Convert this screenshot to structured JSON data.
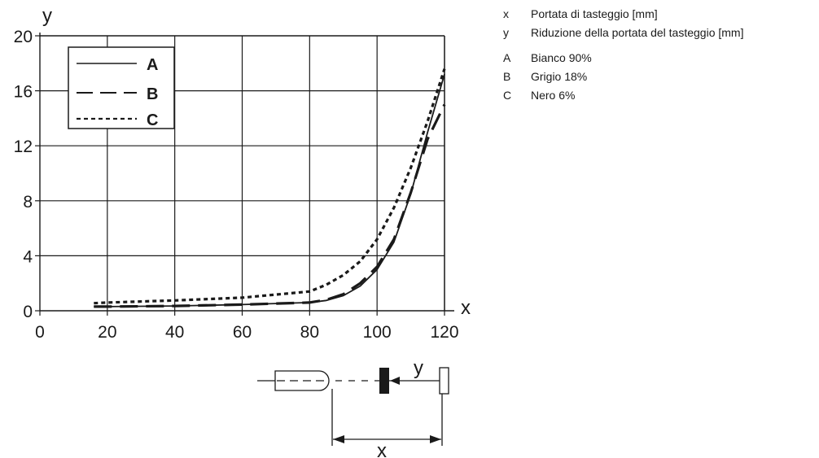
{
  "chart_data": {
    "type": "line",
    "xlabel": "x",
    "ylabel": "y",
    "xlim": [
      0,
      120
    ],
    "ylim": [
      0,
      20
    ],
    "x_ticks": [
      0,
      20,
      40,
      60,
      80,
      100,
      120
    ],
    "y_ticks": [
      0,
      4,
      8,
      12,
      16,
      20
    ],
    "grid": true,
    "legend_position": "top-left",
    "series": [
      {
        "name": "A",
        "line_style": "solid",
        "x": [
          16,
          20,
          40,
          60,
          80,
          85,
          90,
          95,
          100,
          105,
          110,
          115,
          120
        ],
        "y": [
          0.3,
          0.3,
          0.35,
          0.45,
          0.6,
          0.75,
          1.1,
          1.8,
          3.0,
          5.0,
          8.5,
          13.0,
          17.2
        ]
      },
      {
        "name": "B",
        "line_style": "dashed",
        "x": [
          16,
          20,
          40,
          60,
          80,
          85,
          90,
          95,
          100,
          105,
          110,
          115,
          120
        ],
        "y": [
          0.3,
          0.3,
          0.35,
          0.45,
          0.6,
          0.8,
          1.2,
          2.0,
          3.2,
          5.2,
          8.6,
          12.5,
          15.0
        ]
      },
      {
        "name": "C",
        "line_style": "dotted",
        "x": [
          16,
          20,
          40,
          60,
          80,
          85,
          90,
          95,
          100,
          105,
          110,
          115,
          120
        ],
        "y": [
          0.55,
          0.6,
          0.75,
          0.95,
          1.4,
          1.9,
          2.6,
          3.6,
          5.2,
          7.5,
          10.4,
          13.8,
          17.6
        ]
      }
    ]
  },
  "legend": {
    "entries": [
      {
        "label": "A",
        "style": "solid"
      },
      {
        "label": "B",
        "style": "dashed"
      },
      {
        "label": "C",
        "style": "dotted"
      }
    ]
  },
  "diagram": {
    "x_label": "x",
    "y_label": "y"
  },
  "key": {
    "axes": [
      {
        "symbol": "x",
        "text": "Portata di tasteggio [mm]"
      },
      {
        "symbol": "y",
        "text": "Riduzione della portata del tasteggio [mm]"
      }
    ],
    "series": [
      {
        "symbol": "A",
        "text": "Bianco 90%"
      },
      {
        "symbol": "B",
        "text": "Grigio 18%"
      },
      {
        "symbol": "C",
        "text": "Nero 6%"
      }
    ]
  },
  "colors": {
    "ink": "#1a1a1a",
    "background": "#ffffff"
  }
}
